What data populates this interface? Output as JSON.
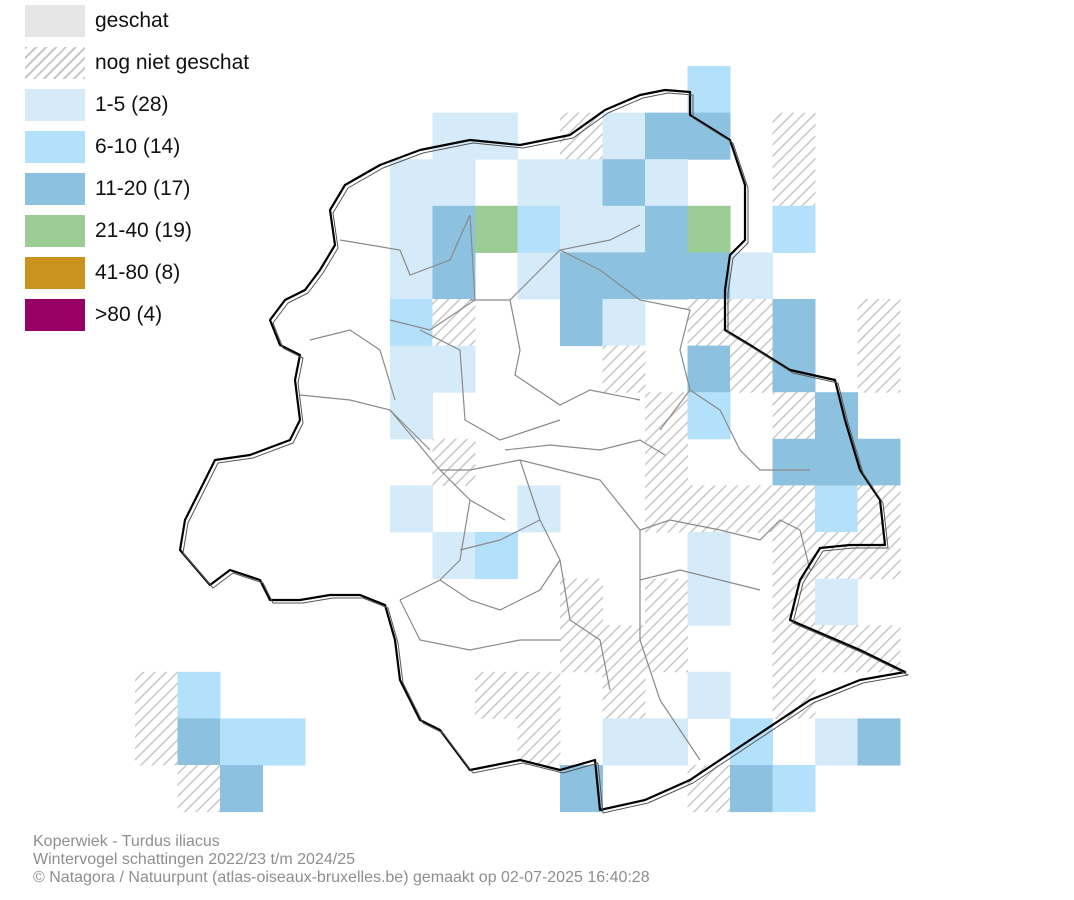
{
  "legend": [
    {
      "id": "geschat",
      "label": "geschat",
      "color": "#e6e6e6",
      "pattern": false
    },
    {
      "id": "nog-niet-geschat",
      "label": "nog niet geschat",
      "color": "#ffffff",
      "pattern": true
    },
    {
      "id": "c1",
      "label": "1-5 (28)",
      "color": "#d6ebfa",
      "pattern": false
    },
    {
      "id": "c2",
      "label": "6-10 (14)",
      "color": "#b3e0fa",
      "pattern": false
    },
    {
      "id": "c3",
      "label": "11-20 (17)",
      "color": "#8cc2e0",
      "pattern": false
    },
    {
      "id": "c4",
      "label": "21-40 (19)",
      "color": "#9acc93",
      "pattern": false
    },
    {
      "id": "c5",
      "label": "41-80 (8)",
      "color": "#cc921e",
      "pattern": false
    },
    {
      "id": "c6",
      "label": ">80 (4)",
      "color": "#990066",
      "pattern": false
    }
  ],
  "map": {
    "grid_rows": 17,
    "grid_cols": 18,
    "cell_codes": "0 = geschat (wit), 1 = nog niet geschat, 2-7 = klassen 1-5 t/m >80",
    "cells": [
      "000000000000030000",
      "000000022012440100",
      "000000220224200100",
      "000000245322450300",
      "000000240244442000",
      "000000310042011401",
      "000000220001041401",
      "000000200000130140",
      "000000010000100444",
      "000000200200111131",
      "000000023000020111",
      "000000000010120120",
      "000000000011100111",
      "130000001101020100",
      "143300000102203024",
      "014000000040014300",
      "000000000000000000"
    ]
  },
  "footer": {
    "line1": "Koperwiek - Turdus iliacus",
    "line2": "Wintervogel schattingen 2022/23 t/m 2024/25",
    "line3": "© Natagora / Natuurpunt (atlas-oiseaux-bruxelles.be) gemaakt op 02-07-2025 16:40:28"
  }
}
